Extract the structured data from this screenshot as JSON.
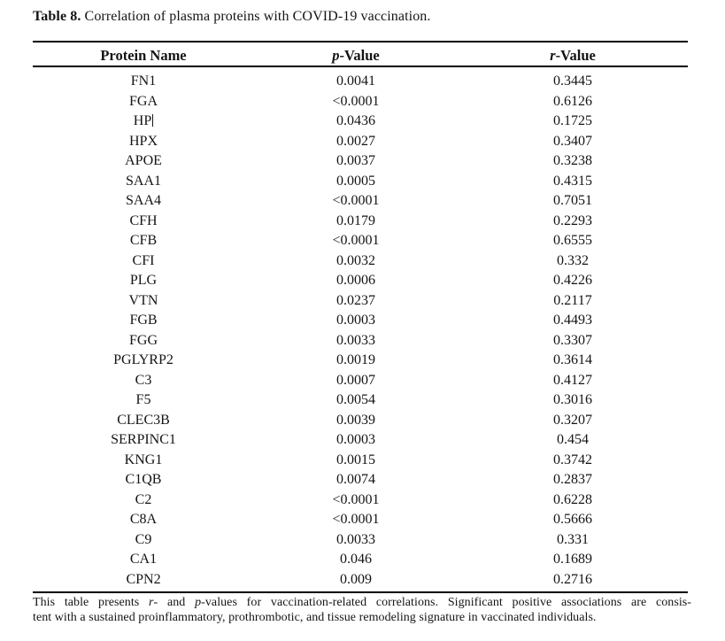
{
  "caption": {
    "label": "Table 8.",
    "text": " Correlation of plasma proteins with COVID-19 vaccination."
  },
  "table": {
    "header": {
      "protein": "Protein Name",
      "p_italic": "p",
      "p_rest": "-Value",
      "r_italic": "r",
      "r_rest": "-Value"
    },
    "rows": [
      {
        "protein": "FN1",
        "p": "0.0041",
        "r": "0.3445",
        "caret": false
      },
      {
        "protein": "FGA",
        "p": "<0.0001",
        "r": "0.6126",
        "caret": false
      },
      {
        "protein": "HP",
        "p": "0.0436",
        "r": "0.1725",
        "caret": true
      },
      {
        "protein": "HPX",
        "p": "0.0027",
        "r": "0.3407",
        "caret": false
      },
      {
        "protein": "APOE",
        "p": "0.0037",
        "r": "0.3238",
        "caret": false
      },
      {
        "protein": "SAA1",
        "p": "0.0005",
        "r": "0.4315",
        "caret": false
      },
      {
        "protein": "SAA4",
        "p": "<0.0001",
        "r": "0.7051",
        "caret": false
      },
      {
        "protein": "CFH",
        "p": "0.0179",
        "r": "0.2293",
        "caret": false
      },
      {
        "protein": "CFB",
        "p": "<0.0001",
        "r": "0.6555",
        "caret": false
      },
      {
        "protein": "CFI",
        "p": "0.0032",
        "r": "0.332",
        "caret": false
      },
      {
        "protein": "PLG",
        "p": "0.0006",
        "r": "0.4226",
        "caret": false
      },
      {
        "protein": "VTN",
        "p": "0.0237",
        "r": "0.2117",
        "caret": false
      },
      {
        "protein": "FGB",
        "p": "0.0003",
        "r": "0.4493",
        "caret": false
      },
      {
        "protein": "FGG",
        "p": "0.0033",
        "r": "0.3307",
        "caret": false
      },
      {
        "protein": "PGLYRP2",
        "p": "0.0019",
        "r": "0.3614",
        "caret": false
      },
      {
        "protein": "C3",
        "p": "0.0007",
        "r": "0.4127",
        "caret": false
      },
      {
        "protein": "F5",
        "p": "0.0054",
        "r": "0.3016",
        "caret": false
      },
      {
        "protein": "CLEC3B",
        "p": "0.0039",
        "r": "0.3207",
        "caret": false
      },
      {
        "protein": "SERPINC1",
        "p": "0.0003",
        "r": "0.454",
        "caret": false
      },
      {
        "protein": "KNG1",
        "p": "0.0015",
        "r": "0.3742",
        "caret": false
      },
      {
        "protein": "C1QB",
        "p": "0.0074",
        "r": "0.2837",
        "caret": false
      },
      {
        "protein": "C2",
        "p": "<0.0001",
        "r": "0.6228",
        "caret": false
      },
      {
        "protein": "C8A",
        "p": "<0.0001",
        "r": "0.5666",
        "caret": false
      },
      {
        "protein": "C9",
        "p": "0.0033",
        "r": "0.331",
        "caret": false
      },
      {
        "protein": "CA1",
        "p": "0.046",
        "r": "0.1689",
        "caret": false
      },
      {
        "protein": "CPN2",
        "p": "0.009",
        "r": "0.2716",
        "caret": false
      }
    ]
  },
  "footnote": {
    "line1_parts": [
      "This table presents ",
      "r",
      "- and ",
      "p",
      "-values for vaccination-related correlations. Significant positive associations are consis-"
    ],
    "line2": "tent with a sustained proinflammatory, prothrombotic, and tissue remodeling signature in vaccinated individuals."
  }
}
